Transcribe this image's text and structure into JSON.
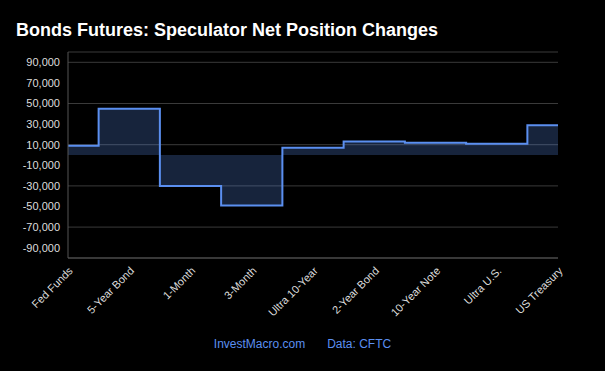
{
  "chart_data": {
    "type": "area",
    "title": "Bonds Futures: Speculator Net Position Changes",
    "annotations": [
      "InvestMacro.com",
      "Data: CFTC"
    ],
    "categories": [
      "Fed Funds",
      "5-Year Bond",
      "1-Month",
      "3-Month",
      "Ultra 10-Year",
      "2-Year Bond",
      "10-Year Note",
      "Ultra U.S.",
      "US Treasury"
    ],
    "values": [
      9000,
      45000,
      -30000,
      -49000,
      7000,
      13000,
      12000,
      11000,
      29000
    ],
    "color": "#5b8ff0",
    "line_style": "step",
    "ylim": [
      -100000,
      100000
    ],
    "yticks": [
      {
        "value": -90000,
        "label": "-90,000"
      },
      {
        "value": -70000,
        "label": "-70,000"
      },
      {
        "value": -50000,
        "label": "-50,000"
      },
      {
        "value": -30000,
        "label": "-30,000"
      },
      {
        "value": -10000,
        "label": "-10,000"
      },
      {
        "value": 10000,
        "label": "10,000"
      },
      {
        "value": 30000,
        "label": "30,000"
      },
      {
        "value": 50000,
        "label": "50,000"
      },
      {
        "value": 70000,
        "label": "70,000"
      },
      {
        "value": 90000,
        "label": "90,000"
      }
    ],
    "grid": true
  }
}
